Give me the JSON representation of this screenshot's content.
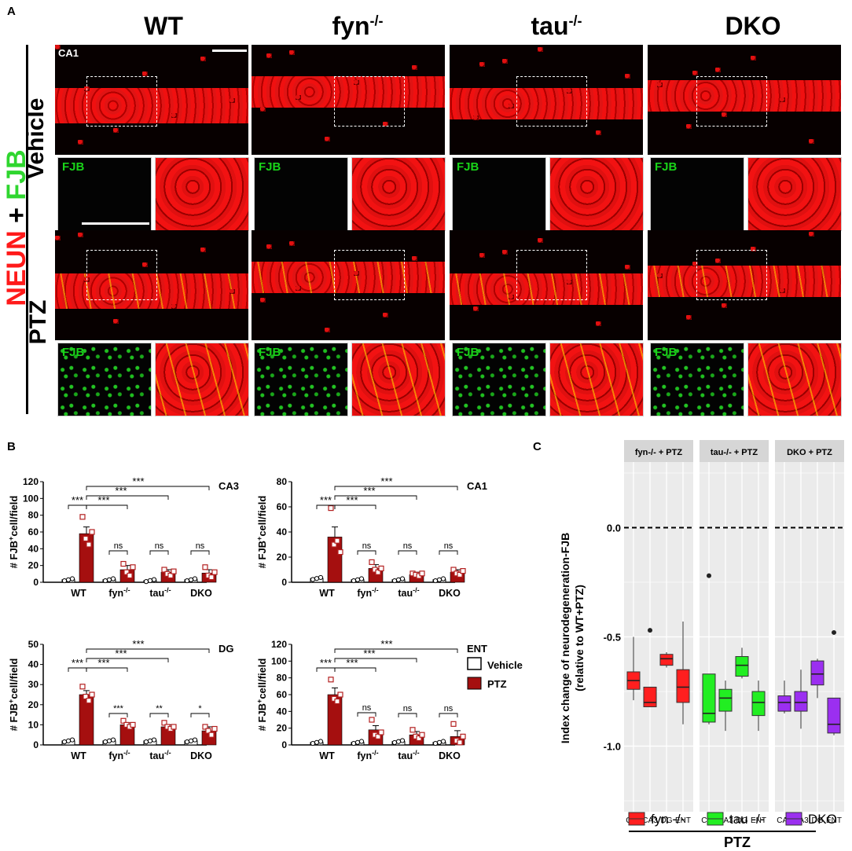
{
  "panel_a": {
    "label": "A",
    "columns": [
      {
        "main": "WT",
        "sup": ""
      },
      {
        "main": "fyn",
        "sup": "-/-"
      },
      {
        "main": "tau",
        "sup": "-/-"
      },
      {
        "main": "DKO",
        "sup": ""
      }
    ],
    "rows": [
      "Vehicle",
      "PTZ"
    ],
    "stain_red": "NEUN",
    "stain_plus": " + ",
    "stain_green": "FJB",
    "region_label": "CA1",
    "inset_label": "FJB",
    "colors": {
      "red": "#ff1a1a",
      "green": "#2fd62f"
    }
  },
  "panel_b": {
    "label": "B",
    "ylabel_main": "# FJB",
    "ylabel_sup": "+",
    "ylabel_rest": "cell/field",
    "legend": {
      "vehicle": "Vehicle",
      "ptz": "PTZ"
    }
  },
  "panel_c": {
    "label": "C",
    "ylabel_line1": "Index change of neurodegeneration-FJB",
    "ylabel_line2": "(relative to WT+PTZ)",
    "footer": "PTZ"
  },
  "chart_data": [
    {
      "type": "bar",
      "title": "CA3",
      "categories": [
        "WT",
        "fyn-/-",
        "tau-/-",
        "DKO"
      ],
      "series": [
        {
          "name": "Vehicle",
          "values": [
            3,
            3,
            2,
            3
          ]
        },
        {
          "name": "PTZ",
          "values": [
            58,
            15,
            12,
            11
          ]
        }
      ],
      "errors": {
        "Vehicle": [
          1,
          1,
          1,
          1
        ],
        "PTZ": [
          8,
          5,
          3,
          4
        ]
      },
      "points": {
        "PTZ": [
          [
            78,
            52,
            45,
            60
          ],
          [
            22,
            12,
            8,
            18
          ],
          [
            15,
            10,
            8,
            13
          ],
          [
            18,
            8,
            6,
            12
          ]
        ]
      },
      "ylabel": "# FJB+cell/field",
      "ylim": [
        0,
        120
      ],
      "yticks": [
        0,
        20,
        40,
        60,
        80,
        100,
        120
      ],
      "significance": {
        "vs_wt": [
          "***",
          "***",
          "***",
          "***"
        ],
        "within": [
          "ns",
          "ns",
          "ns"
        ]
      }
    },
    {
      "type": "bar",
      "title": "CA1",
      "categories": [
        "WT",
        "fyn-/-",
        "tau-/-",
        "DKO"
      ],
      "series": [
        {
          "name": "Vehicle",
          "values": [
            3,
            2,
            2,
            2
          ]
        },
        {
          "name": "PTZ",
          "values": [
            36,
            11,
            6,
            8
          ]
        }
      ],
      "errors": {
        "Vehicle": [
          1,
          1,
          1,
          1
        ],
        "PTZ": [
          8,
          3,
          2,
          2
        ]
      },
      "points": {
        "PTZ": [
          [
            59,
            30,
            33,
            24
          ],
          [
            16,
            10,
            8,
            11
          ],
          [
            7,
            6,
            5,
            7
          ],
          [
            10,
            7,
            6,
            9
          ]
        ]
      },
      "ylabel": "# FJB+cell/field",
      "ylim": [
        0,
        80
      ],
      "yticks": [
        0,
        20,
        40,
        60,
        80
      ],
      "significance": {
        "vs_wt": [
          "***",
          "***",
          "***",
          "***"
        ],
        "within": [
          "ns",
          "ns",
          "ns"
        ]
      }
    },
    {
      "type": "bar",
      "title": "DG",
      "categories": [
        "WT",
        "fyn-/-",
        "tau-/-",
        "DKO"
      ],
      "series": [
        {
          "name": "Vehicle",
          "values": [
            2,
            2,
            2,
            2
          ]
        },
        {
          "name": "PTZ",
          "values": [
            25,
            10,
            9,
            7
          ]
        }
      ],
      "errors": {
        "Vehicle": [
          1,
          1,
          1,
          1
        ],
        "PTZ": [
          2,
          1,
          1,
          2
        ]
      },
      "points": {
        "PTZ": [
          [
            29,
            24,
            22,
            25
          ],
          [
            12,
            10,
            9,
            10
          ],
          [
            11,
            9,
            8,
            9
          ],
          [
            9,
            7,
            5,
            8
          ]
        ]
      },
      "ylabel": "# FJB+cell/field",
      "ylim": [
        0,
        50
      ],
      "yticks": [
        0,
        10,
        20,
        30,
        40,
        50
      ],
      "significance": {
        "vs_wt": [
          "***",
          "***",
          "***",
          "***"
        ],
        "within": [
          "***",
          "**",
          "*"
        ]
      }
    },
    {
      "type": "bar",
      "title": "ENT",
      "categories": [
        "WT",
        "fyn-/-",
        "tau-/-",
        "DKO"
      ],
      "series": [
        {
          "name": "Vehicle",
          "values": [
            3,
            3,
            4,
            3
          ]
        },
        {
          "name": "PTZ",
          "values": [
            60,
            18,
            12,
            10
          ]
        }
      ],
      "errors": {
        "Vehicle": [
          1,
          1,
          1,
          1
        ],
        "PTZ": [
          8,
          5,
          4,
          7
        ]
      },
      "points": {
        "PTZ": [
          [
            78,
            55,
            52,
            60
          ],
          [
            30,
            12,
            10,
            15
          ],
          [
            18,
            10,
            8,
            12
          ],
          [
            25,
            5,
            3,
            10
          ]
        ]
      },
      "ylabel": "# FJB+cell/field",
      "ylim": [
        0,
        120
      ],
      "yticks": [
        0,
        20,
        40,
        60,
        80,
        100,
        120
      ],
      "significance": {
        "vs_wt": [
          "***",
          "***",
          "***",
          "***"
        ],
        "within": [
          "ns",
          "ns",
          "ns"
        ]
      }
    },
    {
      "type": "box",
      "ylabel": "Index change of neurodegeneration-FJB (relative to WT+PTZ)",
      "ylim": [
        -1.3,
        0.3
      ],
      "yticks": [
        0.0,
        -0.5,
        -1.0
      ],
      "reference_line": 0.0,
      "facets": [
        {
          "label": "fyn-/- + PTZ",
          "legend": "fyn -/-",
          "color": "#ff1f1f",
          "boxes": [
            {
              "x": "CA1",
              "min": -0.79,
              "q1": -0.74,
              "median": -0.7,
              "q3": -0.66,
              "max": -0.5
            },
            {
              "x": "CA3",
              "min": -0.82,
              "q1": -0.82,
              "median": -0.8,
              "q3": -0.73,
              "max": -0.73,
              "outliers": [
                -0.47
              ]
            },
            {
              "x": "DG",
              "min": -0.64,
              "q1": -0.63,
              "median": -0.6,
              "q3": -0.58,
              "max": -0.57
            },
            {
              "x": "ENT",
              "min": -0.9,
              "q1": -0.8,
              "median": -0.73,
              "q3": -0.65,
              "max": -0.43
            }
          ]
        },
        {
          "label": "tau-/- + PTZ",
          "legend": "tau -/-",
          "color": "#22ee22",
          "boxes": [
            {
              "x": "CA1",
              "min": -0.9,
              "q1": -0.89,
              "median": -0.85,
              "q3": -0.67,
              "max": -0.67,
              "outliers": [
                -0.22
              ]
            },
            {
              "x": "CA3",
              "min": -0.93,
              "q1": -0.84,
              "median": -0.78,
              "q3": -0.74,
              "max": -0.7
            },
            {
              "x": "DG",
              "min": -0.69,
              "q1": -0.68,
              "median": -0.63,
              "q3": -0.59,
              "max": -0.55
            },
            {
              "x": "ENT",
              "min": -0.93,
              "q1": -0.86,
              "median": -0.8,
              "q3": -0.75,
              "max": -0.7
            }
          ]
        },
        {
          "label": "DKO + PTZ",
          "legend": "DKO",
          "color": "#9b2ff0",
          "boxes": [
            {
              "x": "CA1",
              "min": -0.85,
              "q1": -0.84,
              "median": -0.8,
              "q3": -0.77,
              "max": -0.7
            },
            {
              "x": "CA3",
              "min": -0.92,
              "q1": -0.84,
              "median": -0.8,
              "q3": -0.75,
              "max": -0.65
            },
            {
              "x": "DG",
              "min": -0.78,
              "q1": -0.72,
              "median": -0.67,
              "q3": -0.61,
              "max": -0.6
            },
            {
              "x": "ENT",
              "min": -0.95,
              "q1": -0.94,
              "median": -0.9,
              "q3": -0.78,
              "max": -0.78,
              "outliers": [
                -0.48
              ]
            }
          ]
        }
      ]
    }
  ]
}
